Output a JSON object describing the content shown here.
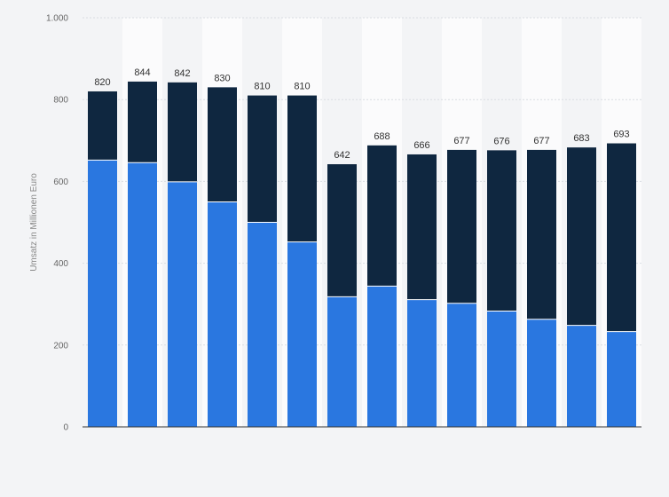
{
  "chart_data": {
    "type": "bar",
    "stacked": true,
    "xlabel": "",
    "ylabel": "Umsatz in Millionen Euro",
    "ylim": [
      0,
      1000
    ],
    "yticks": [
      {
        "value": 0,
        "label": "0"
      },
      {
        "value": 200,
        "label": "200"
      },
      {
        "value": 400,
        "label": "400"
      },
      {
        "value": 600,
        "label": "600"
      },
      {
        "value": 800,
        "label": "800"
      },
      {
        "value": 1000,
        "label": "1.000"
      }
    ],
    "grid": true,
    "colors": {
      "lower": "#2a77e0",
      "upper": "#0f2740"
    },
    "series": [
      {
        "name": "",
        "values": [
          652,
          646,
          599,
          550,
          500,
          452,
          318,
          344,
          311,
          302,
          283,
          263,
          248,
          233
        ]
      },
      {
        "name": "",
        "values": [
          168,
          198,
          243,
          280,
          310,
          358,
          324,
          344,
          355,
          375,
          393,
          414,
          435,
          460
        ]
      }
    ],
    "totals": [
      820,
      844,
      842,
      830,
      810,
      810,
      642,
      688,
      666,
      677,
      676,
      677,
      683,
      693
    ]
  }
}
